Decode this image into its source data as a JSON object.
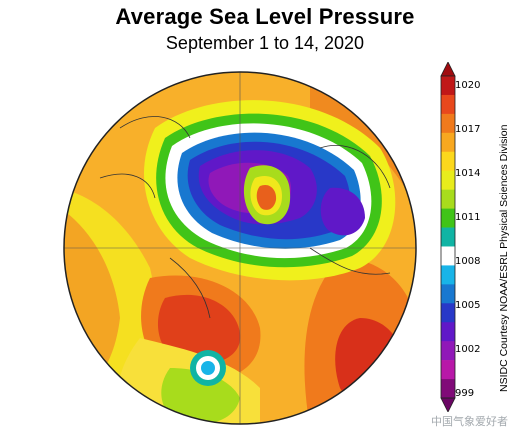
{
  "title": "Average Sea Level Pressure",
  "subtitle": "September 1 to 14, 2020",
  "credit": "NSIDC Courtesy NOAA/ESRL Physical Sciences Division",
  "watermark": "中国气象爱好者",
  "colorbar": {
    "ticks": [
      "1020",
      "1017",
      "1014",
      "1011",
      "1008",
      "1005",
      "1002",
      "999"
    ],
    "colors": [
      "#c01818",
      "#e8481c",
      "#f07a1c",
      "#f8a820",
      "#fcd81c",
      "#e8ec1c",
      "#a8dc1c",
      "#40c418",
      "#10b4a4",
      "#ffffff",
      "#18b4e8",
      "#1878d0",
      "#2838c8",
      "#6018c8",
      "#9018b8",
      "#b818a8",
      "#800a78"
    ]
  },
  "map": {
    "projection": "north-polar-stereographic",
    "features": [
      {
        "name": "arctic-low-ring",
        "color": "#ffffff"
      },
      {
        "name": "arctic-low-core",
        "color": "#7a14c0"
      },
      {
        "name": "greenland-high",
        "color": "#e8601c"
      },
      {
        "name": "pacific-low",
        "color": "#18b4e8"
      }
    ]
  }
}
